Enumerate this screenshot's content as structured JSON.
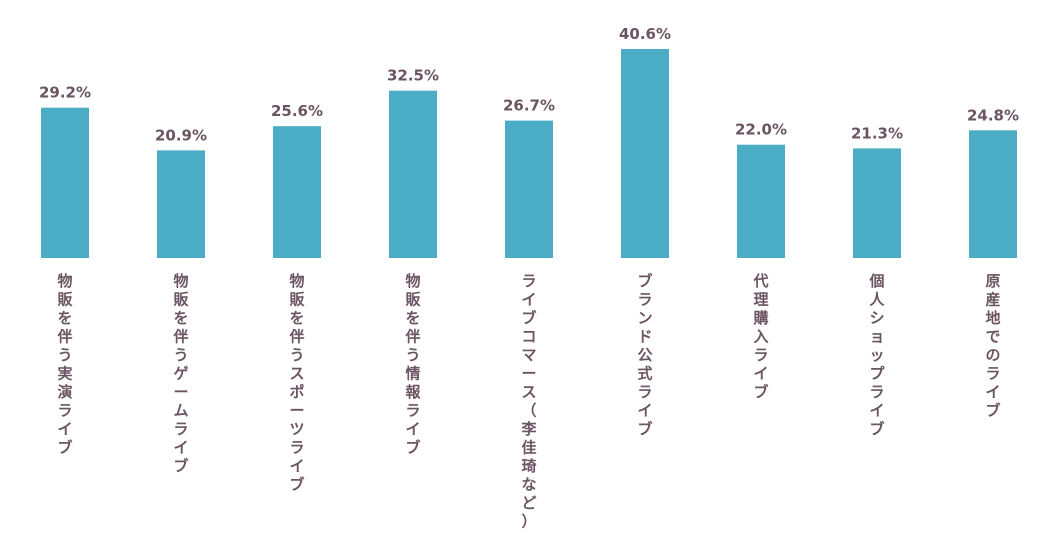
{
  "chart_data": {
    "type": "bar",
    "categories": [
      "物販を伴う実演ライブ",
      "物販を伴うゲームライブ",
      "物販を伴うスポーツライブ",
      "物販を伴う情報ライブ",
      "ライブコマース（李佳琦など）",
      "ブランド公式ライブ",
      "代理購入ライブ",
      "個人ショップライブ",
      "原産地でのライブ"
    ],
    "values": [
      29.2,
      20.9,
      25.6,
      32.5,
      26.7,
      40.6,
      22.0,
      21.3,
      24.8
    ],
    "value_labels": [
      "29.2%",
      "20.9%",
      "25.6%",
      "32.5%",
      "26.7%",
      "40.6%",
      "22.0%",
      "21.3%",
      "24.8%"
    ],
    "title": "",
    "xlabel": "",
    "ylabel": "",
    "ylim": [
      0,
      40.6
    ],
    "grid": false,
    "legend": "none",
    "colors": {
      "bar": "#4aacc5",
      "text": "#6b5563"
    }
  }
}
